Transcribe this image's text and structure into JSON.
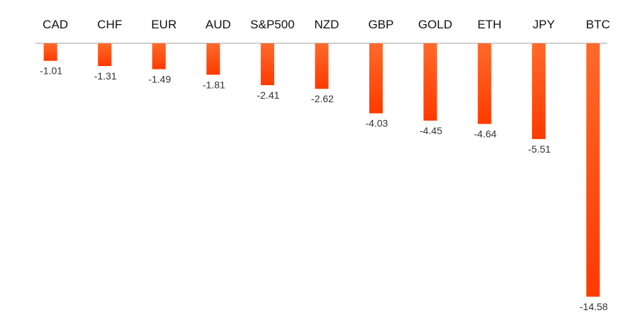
{
  "chart_data": {
    "type": "bar",
    "categories": [
      "CAD",
      "CHF",
      "EUR",
      "AUD",
      "S&P500",
      "NZD",
      "GBP",
      "GOLD",
      "ETH",
      "JPY",
      "BTC"
    ],
    "values": [
      -1.01,
      -1.31,
      -1.49,
      -1.81,
      -2.41,
      -2.62,
      -4.03,
      -4.45,
      -4.64,
      -5.51,
      -14.58
    ],
    "value_labels": [
      "-1.01",
      "-1.31",
      "-1.49",
      "-1.81",
      "-2.41",
      "-2.62",
      "-4.03",
      "-4.45",
      "-4.64",
      "-5.51",
      "-14.58"
    ],
    "title": "",
    "xlabel": "",
    "ylabel": "",
    "ylim": [
      -14.58,
      0
    ],
    "category_axis_position": "top",
    "grid": false,
    "legend": "none",
    "colors": {
      "bar_top": "#ff6a2a",
      "bar_bottom": "#ff3a00",
      "axis": "#bfbfbf"
    }
  }
}
